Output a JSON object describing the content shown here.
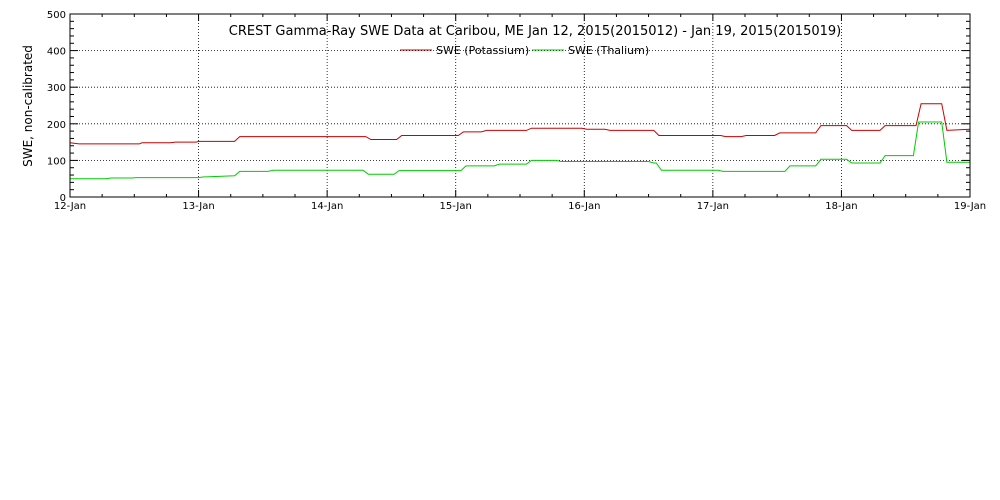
{
  "chart_data": {
    "type": "line",
    "title": "CREST Gamma-Ray SWE Data at Caribou, ME   Jan 12, 2015(2015012) - Jan 19, 2015(2015019)",
    "xlabel": "",
    "ylabel": "SWE, non-calibrated",
    "x_unit": "days",
    "xlim": [
      0,
      7
    ],
    "ylim": [
      0,
      500
    ],
    "x_ticks": [
      {
        "value": 0,
        "label": "12-Jan"
      },
      {
        "value": 1,
        "label": "13-Jan"
      },
      {
        "value": 2,
        "label": "14-Jan"
      },
      {
        "value": 3,
        "label": "15-Jan"
      },
      {
        "value": 4,
        "label": "16-Jan"
      },
      {
        "value": 5,
        "label": "17-Jan"
      },
      {
        "value": 6,
        "label": "18-Jan"
      },
      {
        "value": 7,
        "label": "19-Jan"
      }
    ],
    "y_ticks": [
      {
        "value": 0,
        "label": "0"
      },
      {
        "value": 100,
        "label": "100"
      },
      {
        "value": 200,
        "label": "200"
      },
      {
        "value": 300,
        "label": "300"
      },
      {
        "value": 400,
        "label": "400"
      },
      {
        "value": 500,
        "label": "500"
      }
    ],
    "grid": true,
    "legend": "top-center",
    "series": [
      {
        "name": "SWE (Potassium)",
        "color": "#cc0000",
        "x": [
          0.0,
          0.07,
          0.54,
          0.56,
          0.78,
          0.82,
          0.98,
          1.0,
          1.28,
          1.32,
          2.1,
          2.12,
          2.3,
          2.34,
          2.54,
          2.58,
          3.02,
          3.06,
          3.2,
          3.24,
          3.55,
          3.59,
          3.98,
          4.02,
          4.16,
          4.2,
          4.54,
          4.58,
          4.74,
          4.78,
          4.92,
          4.96,
          5.06,
          5.1,
          5.22,
          5.26,
          5.48,
          5.52,
          5.6,
          5.64,
          5.8,
          5.84,
          6.04,
          6.08,
          6.3,
          6.34,
          6.52,
          6.56,
          6.58,
          6.62,
          6.78,
          6.82,
          7.0
        ],
        "y": [
          148,
          145,
          145,
          148,
          148,
          150,
          150,
          152,
          152,
          165,
          165,
          165,
          165,
          157,
          157,
          168,
          168,
          178,
          178,
          182,
          182,
          188,
          188,
          185,
          185,
          182,
          182,
          168,
          168,
          168,
          168,
          168,
          168,
          165,
          165,
          168,
          168,
          175,
          175,
          175,
          175,
          195,
          195,
          182,
          182,
          195,
          195,
          195,
          195,
          255,
          255,
          182,
          185
        ]
      },
      {
        "name": "SWE (Thalium)",
        "color": "#00cc00",
        "x": [
          0.0,
          0.28,
          0.32,
          0.48,
          0.52,
          1.0,
          1.04,
          1.06,
          1.28,
          1.32,
          1.54,
          1.58,
          2.28,
          2.32,
          2.52,
          2.56,
          3.04,
          3.08,
          3.2,
          3.24,
          3.3,
          3.34,
          3.55,
          3.59,
          3.78,
          3.82,
          4.5,
          4.54,
          4.56,
          4.6,
          4.98,
          5.02,
          5.04,
          5.08,
          5.56,
          5.6,
          5.8,
          5.84,
          6.04,
          6.08,
          6.3,
          6.34,
          6.56,
          6.6,
          6.78,
          6.82,
          7.0
        ],
        "y": [
          50,
          50,
          52,
          52,
          53,
          53,
          55,
          55,
          58,
          70,
          70,
          73,
          73,
          62,
          62,
          72,
          72,
          85,
          85,
          85,
          85,
          90,
          90,
          100,
          100,
          97,
          97,
          93,
          93,
          73,
          73,
          73,
          73,
          70,
          70,
          85,
          85,
          103,
          103,
          93,
          93,
          113,
          113,
          205,
          205,
          95,
          95
        ]
      }
    ]
  }
}
